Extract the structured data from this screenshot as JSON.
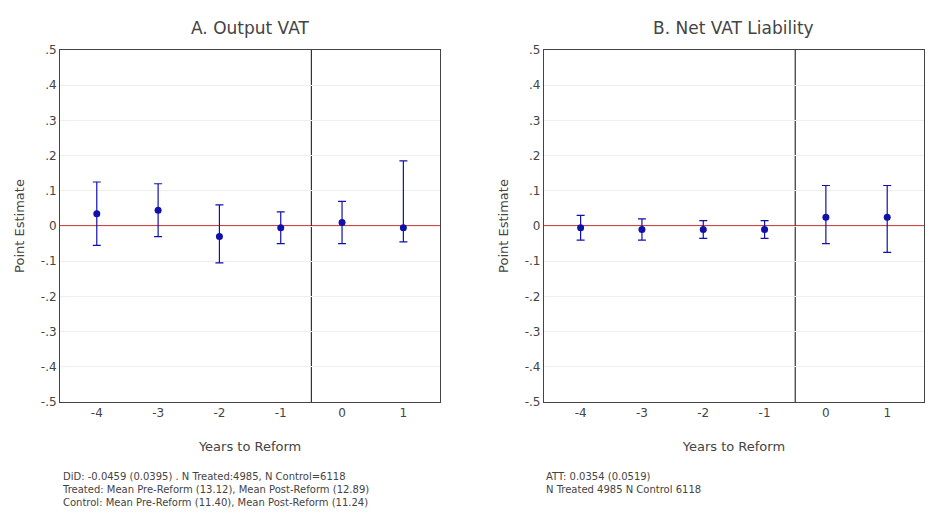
{
  "chart_data": [
    {
      "type": "scatter",
      "title": "A. Output VAT",
      "xlabel": "Years to Reform",
      "ylabel": "Point Estimate",
      "x": [
        -4,
        -3,
        -2,
        -1,
        0,
        1
      ],
      "values": [
        0.035,
        0.045,
        -0.03,
        -0.005,
        0.01,
        -0.005
      ],
      "error_low": [
        0.09,
        0.075,
        0.075,
        0.045,
        0.06,
        0.04
      ],
      "error_high": [
        0.09,
        0.075,
        0.09,
        0.045,
        0.06,
        0.19
      ],
      "color": "#1111AA",
      "marker": "circle",
      "xlim": [
        -4.6,
        1.6
      ],
      "xticks": [
        -4,
        -3,
        -2,
        -1,
        0,
        1
      ],
      "ylim": [
        -0.5,
        0.5
      ],
      "yticks": [
        {
          "value": -0.5,
          "label": "-.5"
        },
        {
          "value": -0.4,
          "label": "-.4"
        },
        {
          "value": -0.3,
          "label": "-.3"
        },
        {
          "value": -0.2,
          "label": "-.2"
        },
        {
          "value": -0.1,
          "label": "-.1"
        },
        0,
        {
          "value": 0.1,
          "label": ".1"
        },
        {
          "value": 0.2,
          "label": ".2"
        },
        {
          "value": 0.3,
          "label": ".3"
        },
        {
          "value": 0.4,
          "label": ".4"
        },
        {
          "value": 0.5,
          "label": ".5"
        }
      ],
      "grid": true,
      "hline": {
        "y": 0,
        "color": "#CC0000"
      },
      "vline": {
        "x": -0.5,
        "color": "#333333"
      },
      "caption": "DiD: -0.0459 (0.0395) . N Treated:4985, N Control=6118\nTreated: Mean Pre-Reform (13.12), Mean Post-Reform (12.89)\nControl: Mean Pre-Reform (11.40), Mean Post-Reform (11.24)"
    },
    {
      "type": "scatter",
      "title": "B. Net VAT Liability",
      "xlabel": "Years to Reform",
      "ylabel": "Point Estimate",
      "x": [
        -4,
        -3,
        -2,
        -1,
        0,
        1
      ],
      "values": [
        -0.005,
        -0.01,
        -0.01,
        -0.01,
        0.025,
        0.025
      ],
      "error_low": [
        0.035,
        0.03,
        0.025,
        0.025,
        0.075,
        0.1
      ],
      "error_high": [
        0.035,
        0.03,
        0.025,
        0.025,
        0.09,
        0.09
      ],
      "color": "#1111AA",
      "marker": "circle",
      "xlim": [
        -4.6,
        1.6
      ],
      "xticks": [
        -4,
        -3,
        -2,
        -1,
        0,
        1
      ],
      "ylim": [
        -0.5,
        0.5
      ],
      "yticks": [
        {
          "value": -0.5,
          "label": "-.5"
        },
        {
          "value": -0.4,
          "label": "-.4"
        },
        {
          "value": -0.3,
          "label": "-.3"
        },
        {
          "value": -0.2,
          "label": "-.2"
        },
        {
          "value": -0.1,
          "label": "-.1"
        },
        0,
        {
          "value": 0.1,
          "label": ".1"
        },
        {
          "value": 0.2,
          "label": ".2"
        },
        {
          "value": 0.3,
          "label": ".3"
        },
        {
          "value": 0.4,
          "label": ".4"
        },
        {
          "value": 0.5,
          "label": ".5"
        }
      ],
      "grid": true,
      "hline": {
        "y": 0,
        "color": "#CC0000"
      },
      "vline": {
        "x": -0.5,
        "color": "#333333"
      },
      "caption": "ATT: 0.0354 (0.0519)\nN Treated 4985 N Control 6118"
    }
  ]
}
